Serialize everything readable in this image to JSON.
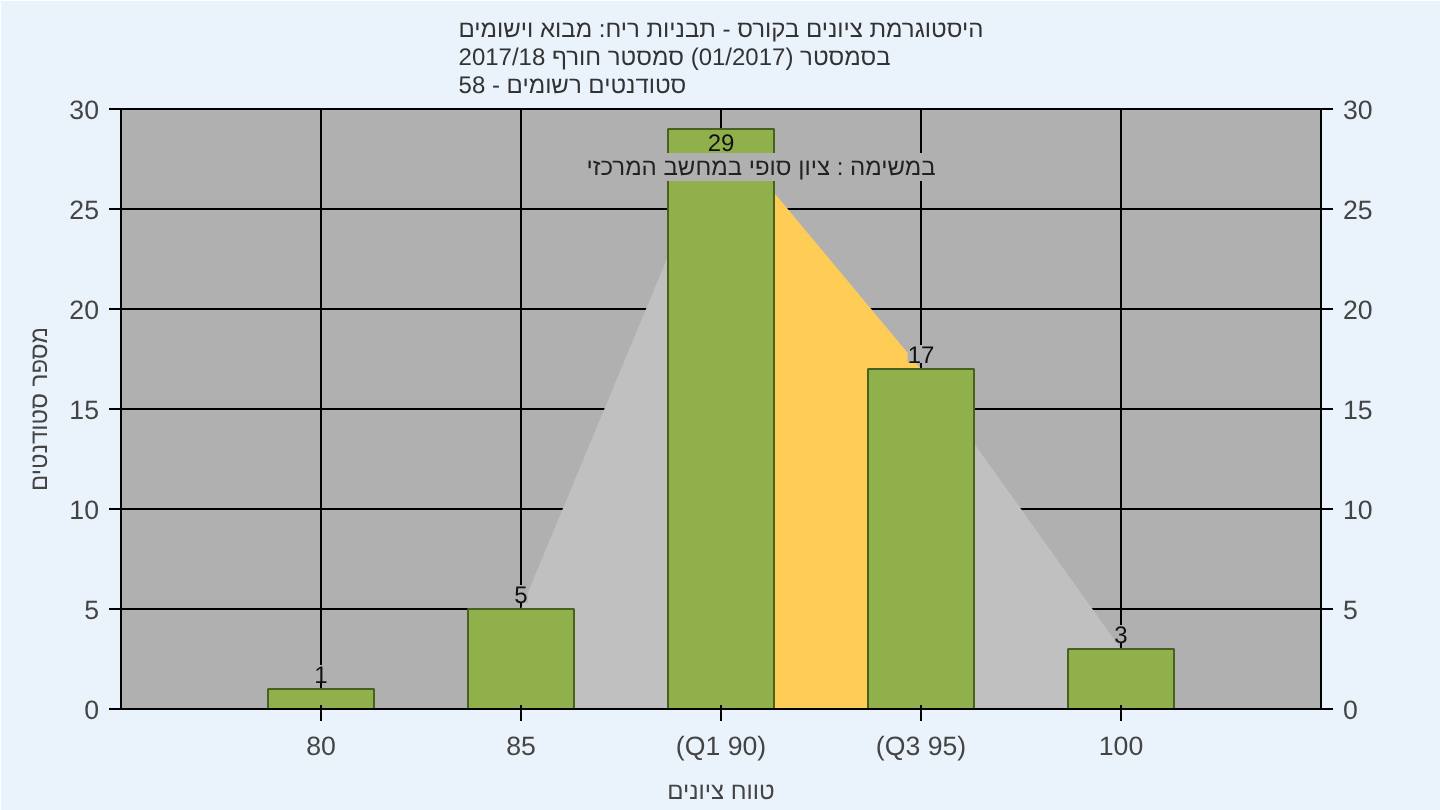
{
  "chart_data": {
    "type": "bar",
    "title": "היסטוגרמת ציונים בקורס - תבניות ריח: מבוא וישומים\nבסמסטר  (01/2017)  סמסטר חורף 2017/18\nסטודנטים רשומים - 58",
    "xlabel": "טווח ציונים",
    "ylabel": "מספר סטודנטים",
    "annotations": [
      "במשימה : ציון סופי במחשב המרכזי"
    ],
    "categories": [
      "80",
      "85",
      "(Q1 90)",
      "(Q3 95)",
      "100"
    ],
    "series": [
      {
        "type": "area",
        "color": "#c0c0c0",
        "values": [
          null,
          5,
          29,
          17,
          3
        ]
      },
      {
        "type": "area",
        "color": "#ffcc55",
        "values": [
          null,
          null,
          29,
          17,
          null
        ]
      },
      {
        "color": "#8fb04a",
        "values": [
          1,
          5,
          29,
          17,
          3
        ],
        "value_labels": [
          "1",
          "5",
          "29",
          "17",
          "3"
        ]
      }
    ],
    "ylim": [
      0,
      30
    ],
    "yticks": [
      0,
      5,
      10,
      15,
      20,
      25,
      30
    ],
    "y2lim": [
      0,
      30
    ],
    "y2ticks": [
      0,
      5,
      10,
      15,
      20,
      25,
      30
    ],
    "grid": true
  }
}
